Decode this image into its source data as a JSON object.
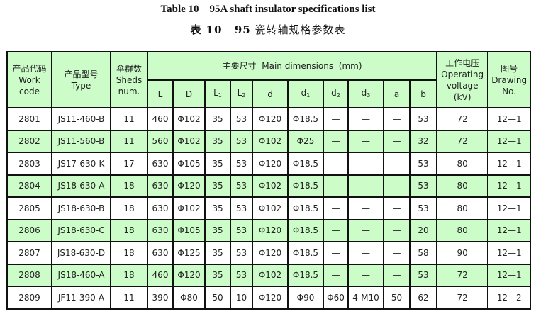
{
  "title_en": "Table 10    95A shaft insulator specifications list",
  "title_cn_prefix": "表 10",
  "title_cn_num": "95",
  "title_cn_rest": "瓷转轴规格参数表",
  "headers": {
    "code_cn": "产品代码",
    "code_en1": "Work",
    "code_en2": "code",
    "type_cn": "产品型号",
    "type_en": "Type",
    "sheds_cn": "伞群数",
    "sheds_en1": "Sheds",
    "sheds_en2": "num.",
    "dims": "主要尺寸  Main dimensions  (mm)",
    "volt_cn": "工作电压",
    "volt_en1": "Operating",
    "volt_en2": "voltage",
    "volt_en3": "(kV)",
    "draw_cn": "图号",
    "draw_en1": "Drawing",
    "draw_en2": "No.",
    "sub": [
      "L",
      "D",
      "L",
      "L",
      "d",
      "d",
      "d",
      "d",
      "a",
      "b"
    ],
    "subidx": [
      "",
      "",
      "1",
      "2",
      "",
      "1",
      "2",
      "3",
      "",
      ""
    ]
  },
  "rows": [
    [
      "2801",
      "JS11-460-B",
      "11",
      "460",
      "Φ102",
      "35",
      "53",
      "Φ120",
      "Φ18.5",
      "—",
      "—",
      "—",
      "53",
      "72",
      "12—1"
    ],
    [
      "2802",
      "JS11-560-B",
      "11",
      "560",
      "Φ102",
      "35",
      "53",
      "Φ102",
      "Φ25",
      "—",
      "—",
      "—",
      "32",
      "72",
      "12—1"
    ],
    [
      "2803",
      "JS17-630-K",
      "17",
      "630",
      "Φ105",
      "35",
      "53",
      "Φ120",
      "Φ18.5",
      "—",
      "—",
      "—",
      "53",
      "80",
      "12—1"
    ],
    [
      "2804",
      "JS18-630-A",
      "18",
      "630",
      "Φ120",
      "35",
      "53",
      "Φ102",
      "Φ18.5",
      "—",
      "—",
      "—",
      "53",
      "80",
      "12—1"
    ],
    [
      "2805",
      "JS18-630-B",
      "18",
      "630",
      "Φ102",
      "35",
      "53",
      "Φ102",
      "Φ18.5",
      "—",
      "—",
      "—",
      "53",
      "80",
      "12—1"
    ],
    [
      "2806",
      "JS18-630-C",
      "18",
      "630",
      "Φ105",
      "35",
      "53",
      "Φ120",
      "Φ18.5",
      "—",
      "—",
      "—",
      "20",
      "80",
      "12—1"
    ],
    [
      "2807",
      "JS18-630-D",
      "18",
      "630",
      "Φ125",
      "35",
      "53",
      "Φ120",
      "Φ18.5",
      "—",
      "—",
      "—",
      "58",
      "90",
      "12—1"
    ],
    [
      "2808",
      "JS18-460-A",
      "18",
      "460",
      "Φ120",
      "35",
      "53",
      "Φ102",
      "Φ18.5",
      "—",
      "—",
      "—",
      "53",
      "72",
      "12—1"
    ],
    [
      "2809",
      "JF11-390-A",
      "11",
      "390",
      "Φ80",
      "50",
      "10",
      "Φ120",
      "Φ90",
      "Φ60",
      "4-M10",
      "50",
      "62",
      "72",
      "12—2"
    ]
  ],
  "colors": {
    "header_bg": "#ccfcc8",
    "alt_row_bg": "#ccfcc8",
    "border": "#111111"
  }
}
